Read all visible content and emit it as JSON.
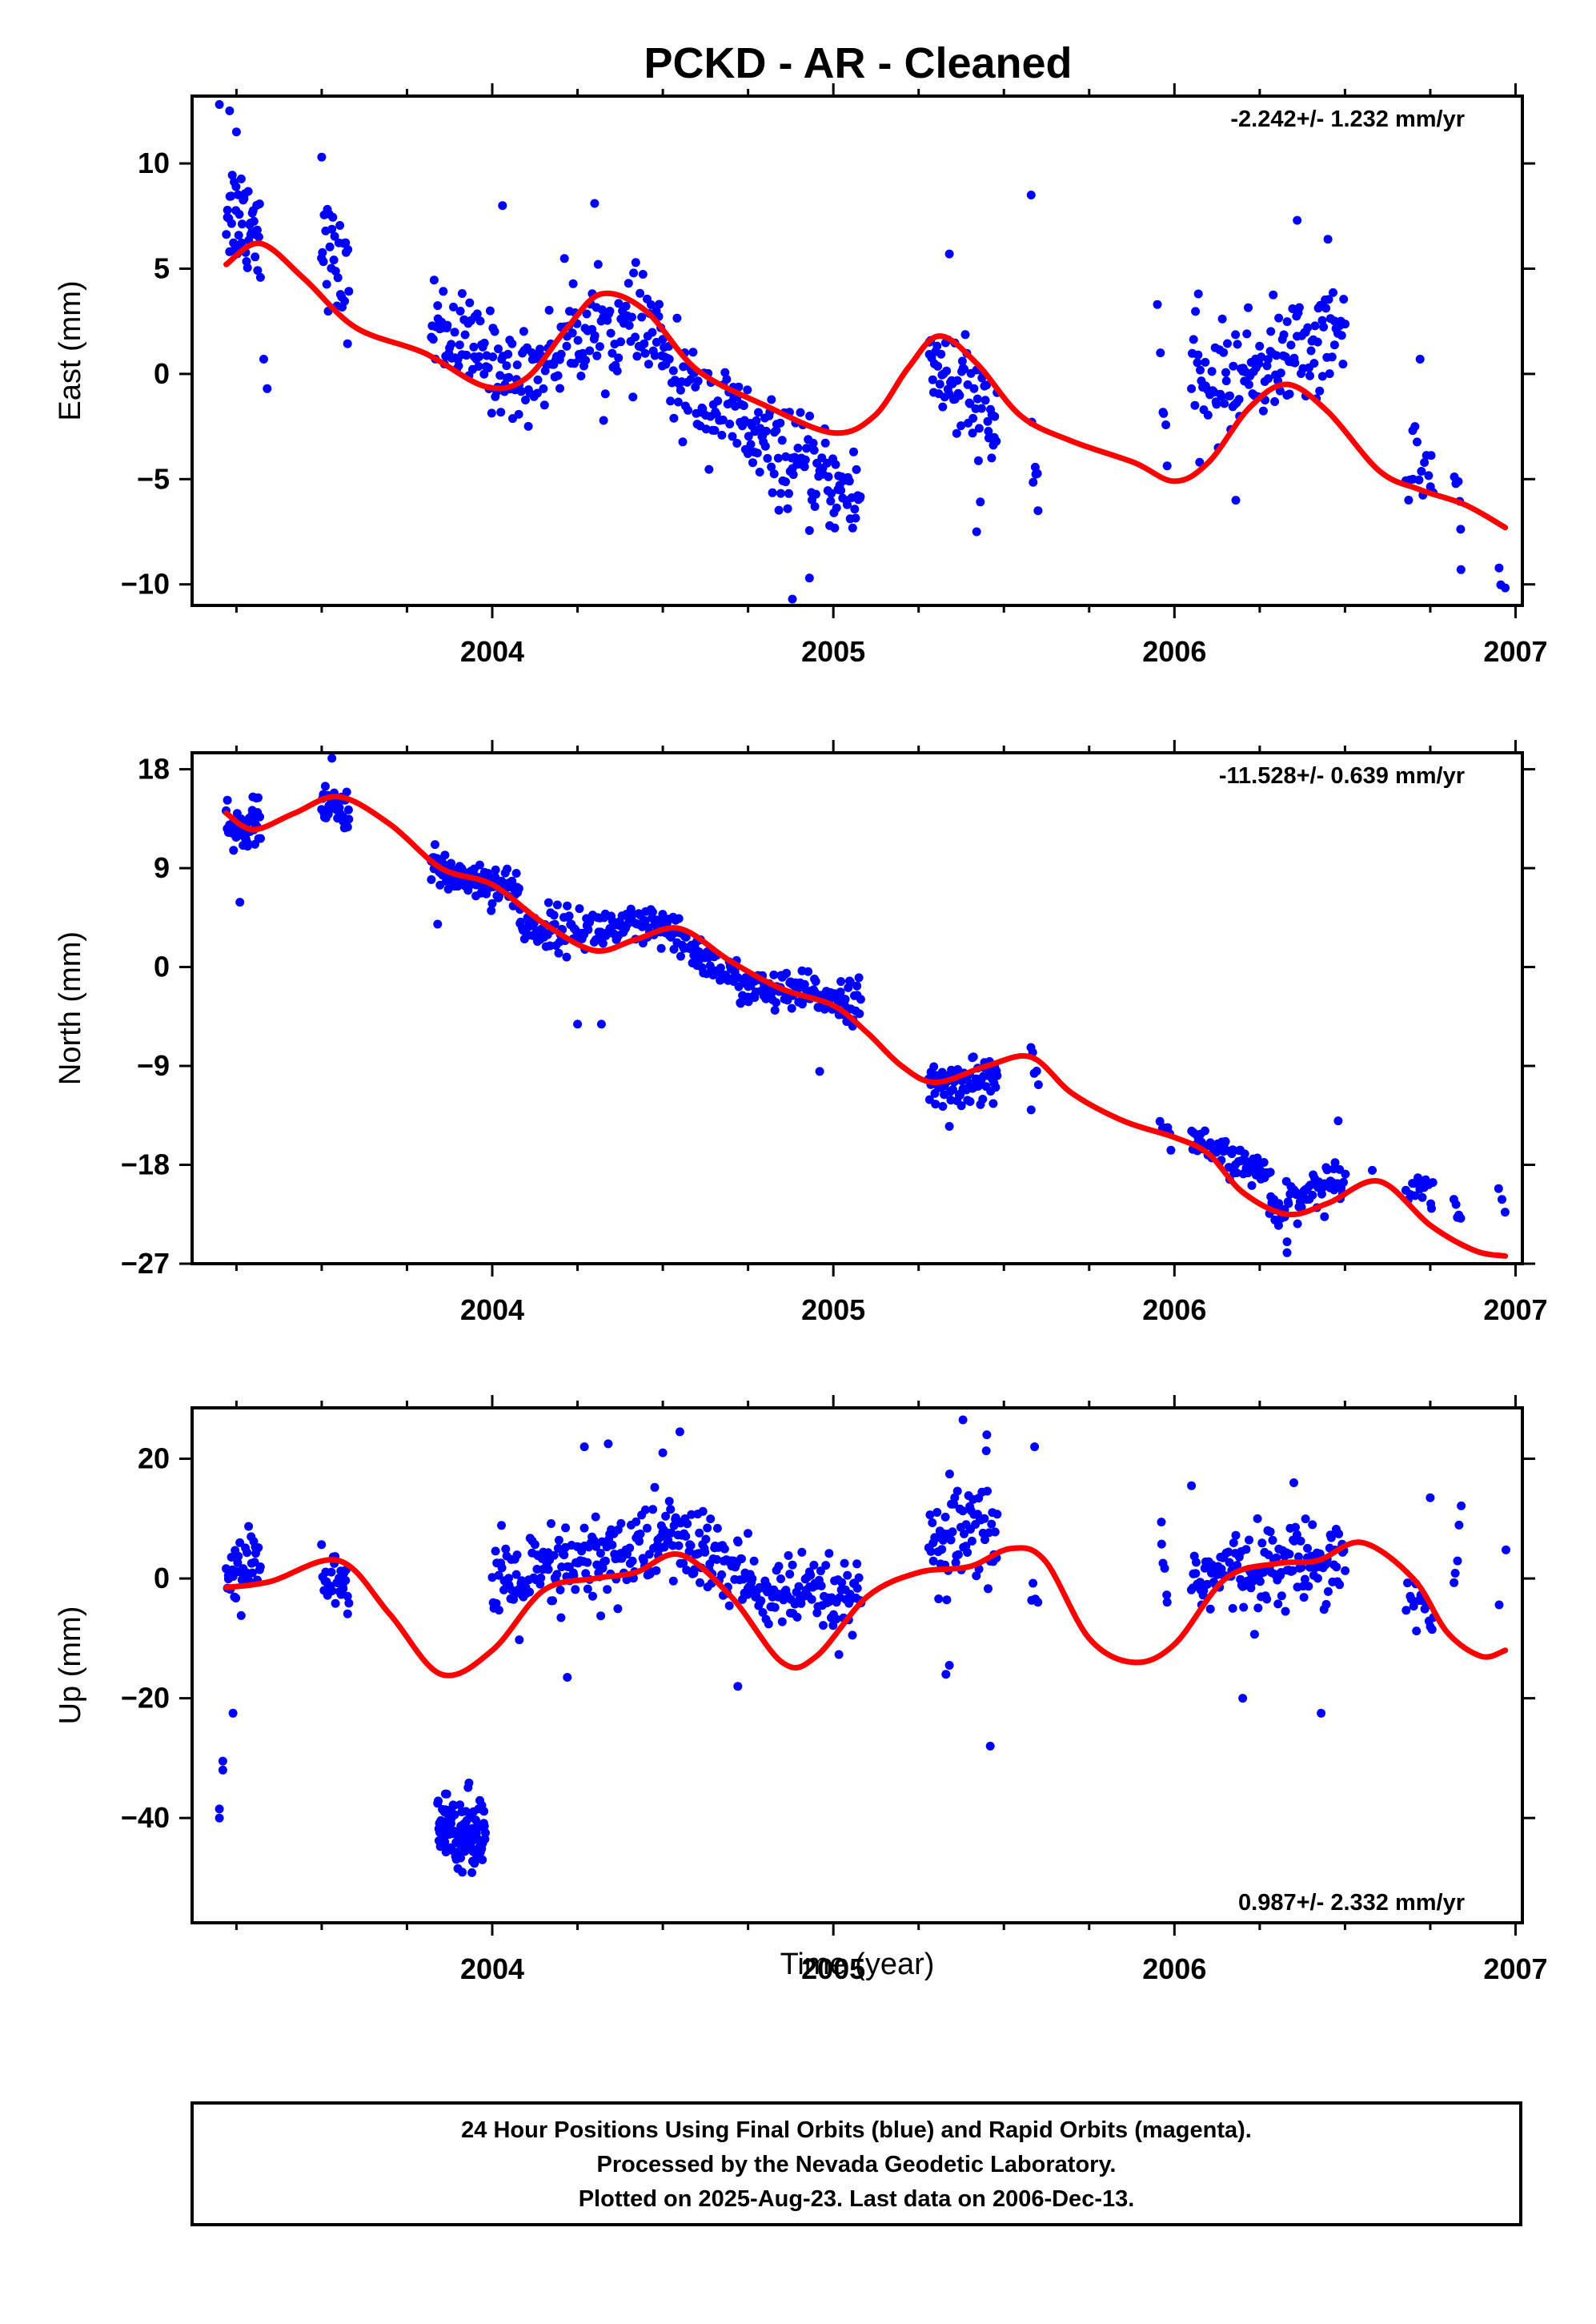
{
  "title": "PCKD  - AR - Cleaned",
  "footer": {
    "lines": [
      "24 Hour Positions Using Final Orbits (blue) and Rapid Orbits (magenta).",
      "Processed by the Nevada Geodetic Laboratory.",
      "Plotted on 2025-Aug-23. Last data on 2006-Dec-13."
    ]
  },
  "colors": {
    "points": "#0000ff",
    "fit": "#ff0000",
    "frame": "#000000"
  },
  "chart_data": [
    {
      "type": "scatter",
      "ylabel": "East (mm)",
      "xlabel": "",
      "rate": "-2.242+/- 1.232 mm/yr",
      "xlim": [
        2003.12,
        2007.02
      ],
      "ylim": [
        -11.0,
        13.2
      ],
      "xticks": [
        2004,
        2005,
        2006,
        2007
      ],
      "yticks": [
        10,
        5,
        0,
        -5,
        -10
      ],
      "yticklabels": [
        "10",
        "5",
        "0",
        "−5",
        "−10"
      ],
      "fit": {
        "x": [
          2003.22,
          2003.32,
          2003.45,
          2003.6,
          2003.8,
          2003.98,
          2004.1,
          2004.22,
          2004.32,
          2004.45,
          2004.6,
          2004.8,
          2005.0,
          2005.12,
          2005.22,
          2005.31,
          2005.42,
          2005.55,
          2005.7,
          2005.88,
          2006.0,
          2006.1,
          2006.22,
          2006.33,
          2006.45,
          2006.6,
          2006.72,
          2006.85,
          2006.97
        ],
        "y": [
          5.2,
          6.2,
          4.5,
          2.2,
          1.0,
          -0.6,
          -0.2,
          2.2,
          3.8,
          3.0,
          0.2,
          -1.5,
          -2.8,
          -2.0,
          0.3,
          1.8,
          0.5,
          -2.0,
          -3.2,
          -4.2,
          -5.1,
          -4.2,
          -1.6,
          -0.5,
          -1.8,
          -4.6,
          -5.5,
          -6.2,
          -7.3
        ]
      },
      "segments": [
        {
          "x0": 2003.22,
          "x1": 2003.32,
          "yc": [
            8.0,
            7.0
          ],
          "spread": 2.4,
          "n": 45
        },
        {
          "x0": 2003.5,
          "x1": 2003.58,
          "yc": [
            6.5,
            4.0
          ],
          "spread": 2.2,
          "n": 30
        },
        {
          "x0": 2003.82,
          "x1": 2004.05,
          "yc": [
            2.5,
            0.0
          ],
          "spread": 2.0,
          "n": 75
        },
        {
          "x0": 2004.05,
          "x1": 2004.2,
          "yc": [
            -0.5,
            1.0
          ],
          "spread": 2.0,
          "n": 45
        },
        {
          "x0": 2004.2,
          "x1": 2004.5,
          "yc": [
            2.0,
            2.0
          ],
          "spread": 2.2,
          "n": 90
        },
        {
          "x0": 2004.5,
          "x1": 2004.75,
          "yc": [
            0.0,
            -2.5
          ],
          "spread": 2.0,
          "n": 75
        },
        {
          "x0": 2004.75,
          "x1": 2005.08,
          "yc": [
            -3.0,
            -6.0
          ],
          "spread": 2.0,
          "n": 110
        },
        {
          "x0": 2005.28,
          "x1": 2005.48,
          "yc": [
            1.0,
            -3.0
          ],
          "spread": 2.6,
          "n": 70
        },
        {
          "x0": 2005.58,
          "x1": 2005.6,
          "yc": [
            -3.0,
            -5.0
          ],
          "spread": 2.0,
          "n": 5
        },
        {
          "x0": 2005.96,
          "x1": 2005.98,
          "yc": [
            0.5,
            -3.5
          ],
          "spread": 2.0,
          "n": 5
        },
        {
          "x0": 2006.05,
          "x1": 2006.5,
          "yc": [
            -1.0,
            2.0
          ],
          "spread": 2.3,
          "n": 140
        },
        {
          "x0": 2006.68,
          "x1": 2006.76,
          "yc": [
            -3.5,
            -5.0
          ],
          "spread": 1.8,
          "n": 16
        },
        {
          "x0": 2006.82,
          "x1": 2006.84,
          "yc": [
            -4.8,
            -7.0
          ],
          "spread": 1.6,
          "n": 6
        },
        {
          "x0": 2006.95,
          "x1": 2006.97,
          "yc": [
            -9.0,
            -10.0
          ],
          "spread": 1.0,
          "n": 3
        }
      ],
      "outliers": [
        [
          2003.2,
          12.8
        ],
        [
          2003.23,
          12.5
        ],
        [
          2003.25,
          11.5
        ],
        [
          2003.33,
          0.7
        ],
        [
          2003.34,
          -0.7
        ],
        [
          2003.5,
          10.3
        ],
        [
          2005.34,
          5.7
        ],
        [
          2005.58,
          8.5
        ],
        [
          2005.6,
          -6.5
        ],
        [
          2004.03,
          8.0
        ],
        [
          2004.3,
          8.1
        ],
        [
          2004.88,
          -10.7
        ],
        [
          2004.93,
          -9.7
        ],
        [
          2005.42,
          -7.5
        ],
        [
          2005.95,
          3.3
        ],
        [
          2006.07,
          3.8
        ],
        [
          2006.18,
          -6.0
        ],
        [
          2006.36,
          7.3
        ],
        [
          2006.45,
          6.4
        ],
        [
          2006.72,
          0.7
        ],
        [
          2006.84,
          -9.3
        ]
      ]
    },
    {
      "type": "scatter",
      "ylabel": "North (mm)",
      "xlabel": "",
      "rate": "-11.528+/- 0.639 mm/yr",
      "xlim": [
        2003.12,
        2007.02
      ],
      "ylim": [
        -27.0,
        19.5
      ],
      "xticks": [
        2004,
        2005,
        2006,
        2007
      ],
      "yticks": [
        18,
        9,
        0,
        -9,
        -18,
        -27
      ],
      "yticklabels": [
        "18",
        "9",
        "0",
        "−9",
        "−18",
        "−27"
      ],
      "fit": {
        "x": [
          2003.22,
          2003.3,
          2003.42,
          2003.55,
          2003.7,
          2003.85,
          2004.0,
          2004.15,
          2004.3,
          2004.42,
          2004.55,
          2004.7,
          2004.85,
          2005.0,
          2005.1,
          2005.2,
          2005.3,
          2005.45,
          2005.58,
          2005.7,
          2005.85,
          2006.0,
          2006.1,
          2006.2,
          2006.33,
          2006.45,
          2006.6,
          2006.75,
          2006.88,
          2006.97
        ],
        "y": [
          14.0,
          12.5,
          14.0,
          15.5,
          13.0,
          9.0,
          7.5,
          4.0,
          1.5,
          2.5,
          3.5,
          0.5,
          -2.0,
          -3.5,
          -6.0,
          -9.0,
          -10.5,
          -9.0,
          -8.2,
          -11.5,
          -14.0,
          -15.5,
          -17.0,
          -20.5,
          -22.5,
          -21.5,
          -19.5,
          -23.5,
          -25.8,
          -26.3
        ]
      },
      "segments": [
        {
          "x0": 2003.22,
          "x1": 2003.32,
          "yc": [
            12.0,
            13.5
          ],
          "spread": 1.8,
          "n": 50
        },
        {
          "x0": 2003.5,
          "x1": 2003.58,
          "yc": [
            14.5,
            14.5
          ],
          "spread": 1.6,
          "n": 40
        },
        {
          "x0": 2003.82,
          "x1": 2004.08,
          "yc": [
            9.0,
            7.0
          ],
          "spread": 1.6,
          "n": 110
        },
        {
          "x0": 2004.08,
          "x1": 2004.5,
          "yc": [
            3.5,
            3.5
          ],
          "spread": 1.8,
          "n": 130
        },
        {
          "x0": 2004.5,
          "x1": 2004.75,
          "yc": [
            3.5,
            -2.0
          ],
          "spread": 1.6,
          "n": 85
        },
        {
          "x0": 2004.75,
          "x1": 2005.08,
          "yc": [
            -2.0,
            -3.0
          ],
          "spread": 1.7,
          "n": 110
        },
        {
          "x0": 2005.28,
          "x1": 2005.48,
          "yc": [
            -11.0,
            -10.0
          ],
          "spread": 1.8,
          "n": 85
        },
        {
          "x0": 2005.58,
          "x1": 2005.6,
          "yc": [
            -7.5,
            -11.0
          ],
          "spread": 1.5,
          "n": 5
        },
        {
          "x0": 2005.96,
          "x1": 2005.99,
          "yc": [
            -14.0,
            -16.0
          ],
          "spread": 1.2,
          "n": 6
        },
        {
          "x0": 2006.05,
          "x1": 2006.28,
          "yc": [
            -16.0,
            -19.0
          ],
          "spread": 1.3,
          "n": 65
        },
        {
          "x0": 2006.28,
          "x1": 2006.5,
          "yc": [
            -22.0,
            -19.0
          ],
          "spread": 1.6,
          "n": 65
        },
        {
          "x0": 2006.68,
          "x1": 2006.76,
          "yc": [
            -19.5,
            -20.5
          ],
          "spread": 1.4,
          "n": 16
        },
        {
          "x0": 2006.82,
          "x1": 2006.84,
          "yc": [
            -21.0,
            -23.0
          ],
          "spread": 1.2,
          "n": 5
        },
        {
          "x0": 2006.95,
          "x1": 2006.97,
          "yc": [
            -21.0,
            -22.0
          ],
          "spread": 0.8,
          "n": 3
        }
      ],
      "outliers": [
        [
          2003.26,
          5.9
        ],
        [
          2003.53,
          19.0
        ],
        [
          2003.84,
          3.9
        ],
        [
          2004.25,
          -5.2
        ],
        [
          2004.32,
          -5.2
        ],
        [
          2004.96,
          -9.5
        ],
        [
          2005.34,
          -14.5
        ],
        [
          2005.58,
          -13.0
        ],
        [
          2006.33,
          -26.0
        ],
        [
          2006.33,
          -25.0
        ],
        [
          2006.48,
          -14.0
        ],
        [
          2006.58,
          -18.5
        ]
      ]
    },
    {
      "type": "scatter",
      "ylabel": "Up (mm)",
      "xlabel": "Time (year)",
      "rate": "0.987+/- 2.332 mm/yr",
      "xlim": [
        2003.12,
        2007.02
      ],
      "ylim": [
        -57.5,
        28.5
      ],
      "xticks": [
        2004,
        2005,
        2006,
        2007
      ],
      "yticks": [
        20,
        0,
        -20,
        -40
      ],
      "yticklabels": [
        "20",
        "0",
        "−20",
        "−40"
      ],
      "fit": {
        "x": [
          2003.22,
          2003.35,
          2003.55,
          2003.7,
          2003.85,
          2004.0,
          2004.15,
          2004.3,
          2004.42,
          2004.55,
          2004.7,
          2004.85,
          2004.95,
          2005.1,
          2005.25,
          2005.4,
          2005.52,
          2005.62,
          2005.75,
          2005.88,
          2006.0,
          2006.15,
          2006.3,
          2006.42,
          2006.55,
          2006.7,
          2006.8,
          2006.9,
          2006.97
        ],
        "y": [
          -1.5,
          -0.5,
          3.0,
          -6.0,
          -16.0,
          -12.0,
          -2.0,
          0.0,
          1.0,
          4.0,
          -3.0,
          -14.0,
          -13.0,
          -3.0,
          1.0,
          2.0,
          5.0,
          3.0,
          -10.0,
          -14.0,
          -11.0,
          0.0,
          2.5,
          3.0,
          6.0,
          0.0,
          -9.0,
          -13.0,
          -12.0
        ]
      },
      "segments": [
        {
          "x0": 2003.22,
          "x1": 2003.32,
          "yc": [
            1.0,
            3.0
          ],
          "spread": 5.0,
          "n": 40
        },
        {
          "x0": 2003.5,
          "x1": 2003.58,
          "yc": [
            1.0,
            -3.0
          ],
          "spread": 4.5,
          "n": 30
        },
        {
          "x0": 2003.84,
          "x1": 2003.98,
          "yc": [
            -42.0,
            -42.0
          ],
          "spread": 5.5,
          "n": 110
        },
        {
          "x0": 2004.0,
          "x1": 2004.5,
          "yc": [
            -2.0,
            6.0
          ],
          "spread": 7.0,
          "n": 170
        },
        {
          "x0": 2004.5,
          "x1": 2004.75,
          "yc": [
            8.0,
            0.0
          ],
          "spread": 6.5,
          "n": 90
        },
        {
          "x0": 2004.75,
          "x1": 2005.08,
          "yc": [
            -2.0,
            -4.0
          ],
          "spread": 5.5,
          "n": 110
        },
        {
          "x0": 2005.28,
          "x1": 2005.48,
          "yc": [
            5.0,
            8.0
          ],
          "spread": 8.0,
          "n": 70
        },
        {
          "x0": 2005.58,
          "x1": 2005.6,
          "yc": [
            -2.0,
            -4.0
          ],
          "spread": 2.5,
          "n": 4
        },
        {
          "x0": 2005.96,
          "x1": 2005.98,
          "yc": [
            8.0,
            -4.0
          ],
          "spread": 2.5,
          "n": 6
        },
        {
          "x0": 2006.05,
          "x1": 2006.5,
          "yc": [
            0.0,
            4.0
          ],
          "spread": 6.0,
          "n": 150
        },
        {
          "x0": 2006.68,
          "x1": 2006.76,
          "yc": [
            -2.0,
            -8.0
          ],
          "spread": 4.5,
          "n": 16
        },
        {
          "x0": 2006.82,
          "x1": 2006.84,
          "yc": [
            2.0,
            10.0
          ],
          "spread": 3.0,
          "n": 5
        },
        {
          "x0": 2006.95,
          "x1": 2006.97,
          "yc": [
            -4.0,
            5.0
          ],
          "spread": 1.0,
          "n": 2
        }
      ],
      "outliers": [
        [
          2003.2,
          -38.5
        ],
        [
          2003.2,
          -40.0
        ],
        [
          2003.21,
          -30.5
        ],
        [
          2003.21,
          -32.0
        ],
        [
          2003.24,
          -22.5
        ],
        [
          2004.22,
          -16.5
        ],
        [
          2004.27,
          22.0
        ],
        [
          2004.34,
          22.5
        ],
        [
          2004.5,
          21.0
        ],
        [
          2004.55,
          24.5
        ],
        [
          2004.72,
          -18.0
        ],
        [
          2005.33,
          -16.0
        ],
        [
          2005.34,
          -14.5
        ],
        [
          2005.38,
          26.5
        ],
        [
          2005.45,
          24.0
        ],
        [
          2005.46,
          -28.0
        ],
        [
          2005.59,
          22.0
        ],
        [
          2006.2,
          -20.0
        ],
        [
          2006.43,
          -22.5
        ],
        [
          2006.35,
          16.0
        ],
        [
          2006.05,
          15.5
        ],
        [
          2006.75,
          13.5
        ]
      ]
    }
  ]
}
